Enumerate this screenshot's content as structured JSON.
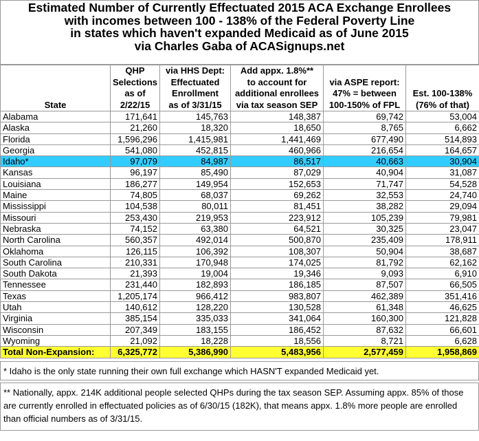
{
  "title": [
    "Estimated Number of Currently Effectuated 2015 ACA Exchange Enrollees",
    "with incomes between 100 - 138% of the Federal Poverty Line",
    "in states which haven't expanded Medicaid as of June 2015",
    "via Charles Gaba of ACASignups.net"
  ],
  "table": {
    "headers": [
      [
        "State"
      ],
      [
        "QHP",
        "Selections",
        "as of",
        "2/22/15"
      ],
      [
        "via HHS Dept:",
        "Effectuated",
        "Enrollment",
        "as of 3/31/15"
      ],
      [
        "Add appx. 1.8%**",
        "to account for",
        "additional enrollees",
        "via tax season SEP"
      ],
      [
        "via ASPE report:",
        "47% = between",
        "100-150% of FPL"
      ],
      [
        "Est. 100-138%",
        "(76% of that)"
      ]
    ],
    "rows": [
      [
        "Alabama",
        "171,641",
        "145,763",
        "148,387",
        "69,742",
        "53,004"
      ],
      [
        "Alaska",
        "21,260",
        "18,320",
        "18,650",
        "8,765",
        "6,662"
      ],
      [
        "Florida",
        "1,596,296",
        "1,415,981",
        "1,441,469",
        "677,490",
        "514,893"
      ],
      [
        "Georgia",
        "541,080",
        "452,815",
        "460,966",
        "216,654",
        "164,657"
      ],
      [
        "Idaho*",
        "97,079",
        "84,987",
        "86,517",
        "40,663",
        "30,904"
      ],
      [
        "Kansas",
        "96,197",
        "85,490",
        "87,029",
        "40,904",
        "31,087"
      ],
      [
        "Louisiana",
        "186,277",
        "149,954",
        "152,653",
        "71,747",
        "54,528"
      ],
      [
        "Maine",
        "74,805",
        "68,037",
        "69,262",
        "32,553",
        "24,740"
      ],
      [
        "Mississippi",
        "104,538",
        "80,011",
        "81,451",
        "38,282",
        "29,094"
      ],
      [
        "Missouri",
        "253,430",
        "219,953",
        "223,912",
        "105,239",
        "79,981"
      ],
      [
        "Nebraska",
        "74,152",
        "63,380",
        "64,521",
        "30,325",
        "23,047"
      ],
      [
        "North Carolina",
        "560,357",
        "492,014",
        "500,870",
        "235,409",
        "178,911"
      ],
      [
        "Oklahoma",
        "126,115",
        "106,392",
        "108,307",
        "50,904",
        "38,687"
      ],
      [
        "South Carolina",
        "210,331",
        "170,948",
        "174,025",
        "81,792",
        "62,162"
      ],
      [
        "South Dakota",
        "21,393",
        "19,004",
        "19,346",
        "9,093",
        "6,910"
      ],
      [
        "Tennessee",
        "231,440",
        "182,893",
        "186,185",
        "87,507",
        "66,505"
      ],
      [
        "Texas",
        "1,205,174",
        "966,412",
        "983,807",
        "462,389",
        "351,416"
      ],
      [
        "Utah",
        "140,612",
        "128,220",
        "130,528",
        "61,348",
        "46,625"
      ],
      [
        "Virginia",
        "385,154",
        "335,033",
        "341,064",
        "160,300",
        "121,828"
      ],
      [
        "Wisconsin",
        "207,349",
        "183,155",
        "186,452",
        "87,632",
        "66,601"
      ],
      [
        "Wyoming",
        "21,092",
        "18,228",
        "18,556",
        "8,721",
        "6,628"
      ]
    ],
    "total": [
      "Total Non-Expansion:",
      "6,325,772",
      "5,386,990",
      "5,483,956",
      "2,577,459",
      "1,958,869"
    ]
  },
  "footnotes": [
    "* Idaho is the only state running their own full exchange which HASN'T expanded Medicaid yet.",
    "** Nationally, appx. 214K additional people selected QHPs during the tax season SEP. Assuming appx. 85% of those are currently enrolled in effectuated policies as of 6/30/15 (182K), that means appx. 1.8% more people are enrolled than official numbers as of 3/31/15."
  ]
}
